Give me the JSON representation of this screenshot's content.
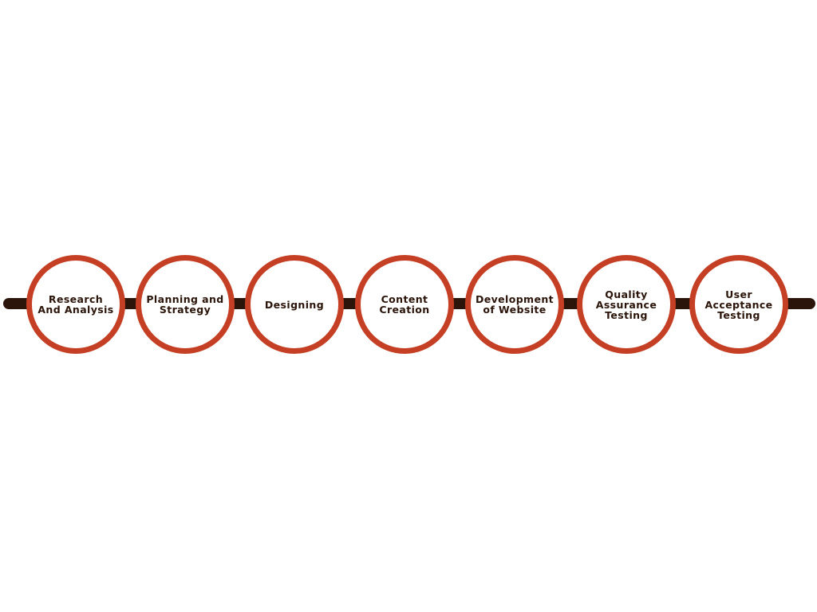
{
  "diagram": {
    "steps": [
      {
        "label": "Research\nAnd Analysis"
      },
      {
        "label": "Planning and\nStrategy"
      },
      {
        "label": "Designing"
      },
      {
        "label": "Content\nCreation"
      },
      {
        "label": "Development\nof Website"
      },
      {
        "label": "Quality\nAssurance\nTesting"
      },
      {
        "label": "User\nAcceptance\nTesting"
      }
    ],
    "colors": {
      "line": "#2b1409",
      "ring": "#c53f25",
      "text": "#2b1409",
      "background": "#ffffff"
    }
  }
}
